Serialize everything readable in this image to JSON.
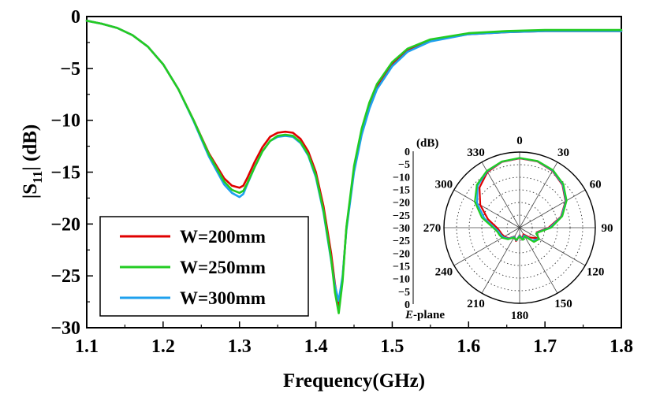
{
  "chart_data": [
    {
      "type": "line",
      "title": "",
      "xlabel": "Frequency(GHz)",
      "ylabel_main": "|S",
      "ylabel_sub": "11",
      "ylabel_tail": "| (dB)",
      "xlim": [
        1.1,
        1.8
      ],
      "ylim": [
        -30,
        0
      ],
      "xticks": [
        1.1,
        1.2,
        1.3,
        1.4,
        1.5,
        1.6,
        1.7,
        1.8
      ],
      "xtick_labels": [
        "1.1",
        "1.2",
        "1.3",
        "1.4",
        "1.5",
        "1.6",
        "1.7",
        "1.8"
      ],
      "yticks": [
        0,
        -5,
        -10,
        -15,
        -20,
        -25,
        -30
      ],
      "ytick_labels": [
        "0",
        "−5",
        "−10",
        "−15",
        "−20",
        "−25",
        "−30"
      ],
      "grid": false,
      "legend_position": "bottom-left",
      "series": [
        {
          "name": "W=200mm",
          "color": "#e00000",
          "x": [
            1.1,
            1.12,
            1.14,
            1.16,
            1.18,
            1.2,
            1.22,
            1.24,
            1.26,
            1.28,
            1.29,
            1.3,
            1.305,
            1.31,
            1.32,
            1.33,
            1.34,
            1.35,
            1.36,
            1.37,
            1.38,
            1.39,
            1.4,
            1.41,
            1.42,
            1.425,
            1.43,
            1.435,
            1.44,
            1.45,
            1.46,
            1.47,
            1.48,
            1.5,
            1.52,
            1.55,
            1.6,
            1.65,
            1.7,
            1.75,
            1.8
          ],
          "y": [
            -0.4,
            -0.7,
            -1.1,
            -1.8,
            -2.9,
            -4.6,
            -7.0,
            -10.0,
            -13.2,
            -15.6,
            -16.3,
            -16.5,
            -16.3,
            -15.6,
            -14.0,
            -12.6,
            -11.6,
            -11.2,
            -11.1,
            -11.2,
            -11.8,
            -13.0,
            -15.0,
            -18.3,
            -22.8,
            -25.8,
            -28.0,
            -25.2,
            -20.4,
            -14.8,
            -11.2,
            -8.7,
            -6.8,
            -4.6,
            -3.3,
            -2.3,
            -1.7,
            -1.5,
            -1.4,
            -1.4,
            -1.4
          ]
        },
        {
          "name": "W=250mm",
          "color": "#22cc22",
          "x": [
            1.1,
            1.12,
            1.14,
            1.16,
            1.18,
            1.2,
            1.22,
            1.24,
            1.26,
            1.28,
            1.29,
            1.3,
            1.305,
            1.31,
            1.32,
            1.33,
            1.34,
            1.35,
            1.36,
            1.37,
            1.38,
            1.39,
            1.4,
            1.41,
            1.42,
            1.425,
            1.43,
            1.435,
            1.44,
            1.45,
            1.46,
            1.47,
            1.48,
            1.5,
            1.52,
            1.55,
            1.6,
            1.65,
            1.7,
            1.75,
            1.8
          ],
          "y": [
            -0.4,
            -0.7,
            -1.1,
            -1.8,
            -2.9,
            -4.6,
            -7.0,
            -10.0,
            -13.3,
            -15.9,
            -16.7,
            -17.0,
            -16.8,
            -16.1,
            -14.5,
            -13.0,
            -12.0,
            -11.5,
            -11.4,
            -11.5,
            -12.1,
            -13.3,
            -15.3,
            -18.7,
            -23.3,
            -26.6,
            -28.6,
            -25.5,
            -20.3,
            -14.4,
            -10.8,
            -8.3,
            -6.5,
            -4.4,
            -3.1,
            -2.2,
            -1.6,
            -1.4,
            -1.3,
            -1.3,
            -1.3
          ]
        },
        {
          "name": "W=300mm",
          "color": "#1ea0ee",
          "x": [
            1.1,
            1.12,
            1.14,
            1.16,
            1.18,
            1.2,
            1.22,
            1.24,
            1.26,
            1.28,
            1.29,
            1.3,
            1.305,
            1.31,
            1.32,
            1.33,
            1.34,
            1.35,
            1.36,
            1.37,
            1.38,
            1.39,
            1.4,
            1.41,
            1.42,
            1.425,
            1.43,
            1.435,
            1.44,
            1.45,
            1.46,
            1.47,
            1.48,
            1.5,
            1.52,
            1.55,
            1.6,
            1.65,
            1.7,
            1.75,
            1.8
          ],
          "y": [
            -0.4,
            -0.7,
            -1.1,
            -1.8,
            -2.9,
            -4.6,
            -7.0,
            -10.1,
            -13.5,
            -16.2,
            -17.0,
            -17.4,
            -17.1,
            -16.2,
            -14.5,
            -13.0,
            -12.0,
            -11.6,
            -11.5,
            -11.6,
            -12.2,
            -13.4,
            -15.5,
            -18.9,
            -23.5,
            -26.0,
            -27.4,
            -25.0,
            -20.6,
            -15.0,
            -11.4,
            -8.9,
            -7.0,
            -4.8,
            -3.4,
            -2.4,
            -1.7,
            -1.5,
            -1.4,
            -1.4,
            -1.4
          ]
        }
      ]
    },
    {
      "type": "polar",
      "title": "E-plane",
      "title_prefix": "E",
      "title_suffix": "-plane",
      "unit_label": "(dB)",
      "rlim": [
        -30,
        0
      ],
      "ring_values": [
        0,
        -5,
        -10,
        -15,
        -20,
        -25,
        -30
      ],
      "ring_labels_upper": [
        "0",
        "−5",
        "−10",
        "−15",
        "−20",
        "−25",
        "−30"
      ],
      "ring_labels_lower": [
        "−25",
        "−20",
        "−15",
        "−10",
        "−5",
        "0"
      ],
      "angle_labels": [
        "0",
        "30",
        "60",
        "90",
        "120",
        "150",
        "180",
        "210",
        "240",
        "270",
        "300",
        "330"
      ],
      "grid": true,
      "series": [
        {
          "name": "W=200mm",
          "color": "#e00000",
          "angles": [
            0,
            15,
            30,
            45,
            60,
            75,
            90,
            105,
            110,
            120,
            135,
            150,
            165,
            180,
            195,
            210,
            225,
            240,
            250,
            260,
            270,
            285,
            300,
            315,
            330,
            345,
            360
          ],
          "values": [
            -2.5,
            -2.8,
            -4.0,
            -6.0,
            -9.0,
            -13.0,
            -18.5,
            -23.0,
            -22.5,
            -21.5,
            -24.5,
            -27.0,
            -25.5,
            -27.0,
            -24.5,
            -26.0,
            -24.0,
            -23.0,
            -22.5,
            -22.0,
            -21.0,
            -17.0,
            -12.0,
            -7.5,
            -4.5,
            -3.0,
            -2.5
          ]
        },
        {
          "name": "W=250mm",
          "color": "#22cc22",
          "angles": [
            0,
            15,
            30,
            45,
            60,
            75,
            90,
            105,
            110,
            120,
            135,
            150,
            165,
            180,
            195,
            210,
            225,
            240,
            250,
            260,
            270,
            285,
            300,
            315,
            330,
            345,
            360
          ],
          "values": [
            -2.3,
            -2.6,
            -3.6,
            -5.5,
            -8.5,
            -12.5,
            -17.5,
            -22.5,
            -23.0,
            -21.0,
            -22.0,
            -26.0,
            -25.0,
            -26.5,
            -25.0,
            -25.5,
            -23.5,
            -22.0,
            -21.5,
            -21.0,
            -19.5,
            -14.5,
            -9.5,
            -6.0,
            -4.0,
            -2.8,
            -2.3
          ]
        },
        {
          "name": "W=300mm",
          "color": "#1ea0ee",
          "angles": [
            0,
            15,
            30,
            45,
            60,
            75,
            90,
            105,
            110,
            120,
            135,
            150,
            165,
            180,
            195,
            210,
            225,
            240,
            250,
            260,
            270,
            285,
            300,
            315,
            330,
            345,
            360
          ],
          "values": [
            -2.4,
            -2.7,
            -3.8,
            -5.8,
            -8.8,
            -12.8,
            -18.0,
            -22.8,
            -22.8,
            -21.2,
            -22.8,
            -26.5,
            -25.2,
            -26.8,
            -24.8,
            -25.8,
            -23.8,
            -22.5,
            -22.0,
            -21.5,
            -20.0,
            -15.5,
            -10.5,
            -6.5,
            -4.2,
            -2.9,
            -2.4
          ]
        }
      ]
    }
  ]
}
